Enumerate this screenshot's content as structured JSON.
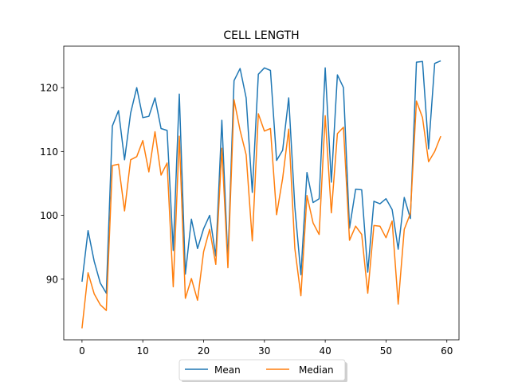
{
  "chart_data": {
    "type": "line",
    "title": "CELL LENGTH",
    "xlabel": "",
    "ylabel": "",
    "xlim": [
      -3,
      62
    ],
    "ylim": [
      80.5,
      126.5
    ],
    "xticks": [
      0,
      10,
      20,
      30,
      40,
      50,
      60
    ],
    "yticks": [
      90,
      100,
      110,
      120
    ],
    "grid": false,
    "legend_position": "bottom-center",
    "x": [
      0,
      1,
      2,
      3,
      4,
      5,
      6,
      7,
      8,
      9,
      10,
      11,
      12,
      13,
      14,
      15,
      16,
      17,
      18,
      19,
      20,
      21,
      22,
      23,
      24,
      25,
      26,
      27,
      28,
      29,
      30,
      31,
      32,
      33,
      34,
      35,
      36,
      37,
      38,
      39,
      40,
      41,
      42,
      43,
      44,
      45,
      46,
      47,
      48,
      49,
      50,
      51,
      52,
      53,
      54,
      55,
      56,
      57,
      58,
      59
    ],
    "series": [
      {
        "name": "Mean",
        "color": "#1f77b4",
        "values": [
          89.6,
          97.6,
          92.8,
          89.4,
          87.8,
          114.0,
          116.4,
          108.7,
          116.0,
          120.0,
          115.3,
          115.5,
          118.4,
          113.6,
          113.3,
          94.5,
          119.0,
          90.8,
          99.4,
          94.8,
          97.9,
          100.0,
          93.6,
          114.9,
          92.9,
          121.1,
          123.0,
          118.4,
          103.6,
          122.1,
          123.1,
          122.7,
          108.6,
          110.2,
          118.4,
          101.3,
          90.7,
          106.7,
          102.0,
          102.6,
          123.1,
          105.2,
          122.0,
          120.0,
          98.0,
          104.1,
          104.0,
          91.1,
          102.2,
          101.8,
          102.6,
          100.9,
          94.7,
          102.8,
          99.5,
          124.0,
          124.1,
          110.4,
          123.8,
          124.2
        ]
      },
      {
        "name": "Median",
        "color": "#ff7f0e",
        "values": [
          82.3,
          91.0,
          87.7,
          86.0,
          85.1,
          107.8,
          108.0,
          100.7,
          108.7,
          109.2,
          111.7,
          106.8,
          113.1,
          106.3,
          108.2,
          88.8,
          112.4,
          87.0,
          90.1,
          86.7,
          94.3,
          97.8,
          92.3,
          110.5,
          91.8,
          118.1,
          113.3,
          109.5,
          96.0,
          115.9,
          113.2,
          113.6,
          100.1,
          105.8,
          113.5,
          94.8,
          87.4,
          103.1,
          98.8,
          97.0,
          115.6,
          100.4,
          112.8,
          113.8,
          96.1,
          98.3,
          97.0,
          87.8,
          98.4,
          98.3,
          96.5,
          99.1,
          86.1,
          97.8,
          100.3,
          117.9,
          115.3,
          108.4,
          110.0,
          112.4
        ]
      }
    ]
  }
}
